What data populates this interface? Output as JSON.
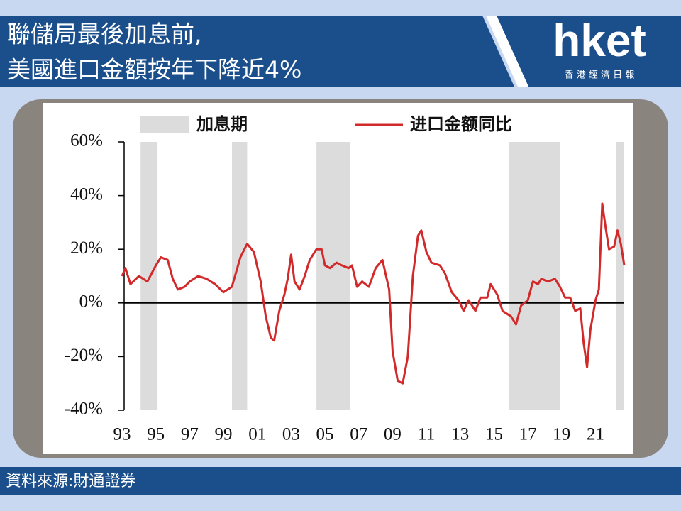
{
  "header": {
    "title_lines": [
      "聯儲局最後加息前,",
      "美國進口金額按年下降近4%"
    ],
    "logo": "hket",
    "logo_sub": "香 港 經 濟 日 報"
  },
  "footer": "資料來源:財通證券",
  "chart_data": {
    "type": "line",
    "shaded": {
      "name": "加息期",
      "color": "#dcdcdc",
      "spans": [
        [
          1994.1,
          1995.1
        ],
        [
          1999.5,
          2000.4
        ],
        [
          2004.5,
          2006.5
        ],
        [
          2015.9,
          2018.9
        ],
        [
          2022.2,
          2022.7
        ]
      ]
    },
    "x": [
      1993.0,
      1993.2,
      1993.5,
      1994.0,
      1994.5,
      1995.0,
      1995.3,
      1995.7,
      1996.0,
      1996.3,
      1996.7,
      1997.0,
      1997.5,
      1998.0,
      1998.5,
      1999.0,
      1999.5,
      2000.0,
      2000.4,
      2000.8,
      2001.2,
      2001.5,
      2001.8,
      2002.0,
      2002.3,
      2002.6,
      2002.8,
      2003.0,
      2003.2,
      2003.5,
      2003.8,
      2004.1,
      2004.5,
      2004.8,
      2005.0,
      2005.3,
      2005.7,
      2006.0,
      2006.4,
      2006.6,
      2006.9,
      2007.2,
      2007.6,
      2008.0,
      2008.4,
      2008.8,
      2009.0,
      2009.3,
      2009.6,
      2009.9,
      2010.2,
      2010.5,
      2010.7,
      2011.0,
      2011.3,
      2011.8,
      2012.1,
      2012.5,
      2012.9,
      2013.2,
      2013.5,
      2013.9,
      2014.2,
      2014.6,
      2014.8,
      2015.2,
      2015.5,
      2016.0,
      2016.3,
      2016.6,
      2017.0,
      2017.3,
      2017.6,
      2017.8,
      2018.2,
      2018.6,
      2018.9,
      2019.2,
      2019.5,
      2019.8,
      2020.1,
      2020.3,
      2020.5,
      2020.7,
      2021.0,
      2021.2,
      2021.4,
      2021.6,
      2021.8,
      2022.1,
      2022.3,
      2022.5,
      2022.7
    ],
    "series": [
      {
        "name": "进口金额同比",
        "color": "#d22a2a",
        "values": [
          10,
          13,
          7,
          10,
          8,
          14,
          17,
          16,
          9,
          5,
          6,
          8,
          10,
          9,
          7,
          4,
          6,
          17,
          22,
          19,
          8,
          -5,
          -13,
          -14,
          -3,
          3,
          9,
          18,
          8,
          5,
          10,
          16,
          20,
          20,
          14,
          13,
          15,
          14,
          13,
          14,
          6,
          8,
          6,
          13,
          16,
          5,
          -18,
          -29,
          -30,
          -20,
          10,
          25,
          27,
          19,
          15,
          14,
          11,
          4,
          1,
          -3,
          1,
          -3,
          2,
          2,
          7,
          3,
          -3,
          -5,
          -8,
          -1,
          1,
          8,
          7,
          9,
          8,
          9,
          6,
          2,
          2,
          -3,
          -2,
          -15,
          -24,
          -10,
          1,
          5,
          37,
          28,
          20,
          21,
          27,
          22,
          14
        ]
      }
    ],
    "xlim": [
      1993.0,
      2022.7
    ],
    "ylim": [
      -40,
      60
    ],
    "xticks": [
      {
        "value": 1993,
        "label": "93"
      },
      {
        "value": 1995,
        "label": "95"
      },
      {
        "value": 1997,
        "label": "97"
      },
      {
        "value": 1999,
        "label": "99"
      },
      {
        "value": 2001,
        "label": "01"
      },
      {
        "value": 2003,
        "label": "03"
      },
      {
        "value": 2005,
        "label": "05"
      },
      {
        "value": 2007,
        "label": "07"
      },
      {
        "value": 2009,
        "label": "09"
      },
      {
        "value": 2011,
        "label": "11"
      },
      {
        "value": 2013,
        "label": "13"
      },
      {
        "value": 2015,
        "label": "15"
      },
      {
        "value": 2017,
        "label": "17"
      },
      {
        "value": 2019,
        "label": "19"
      },
      {
        "value": 2021,
        "label": "21"
      }
    ],
    "yticks": [
      {
        "value": 60,
        "label": "60%"
      },
      {
        "value": 40,
        "label": "40%"
      },
      {
        "value": 20,
        "label": "20%"
      },
      {
        "value": 0,
        "label": "0%"
      },
      {
        "value": -20,
        "label": "-20%"
      },
      {
        "value": -40,
        "label": "-40%"
      }
    ]
  }
}
